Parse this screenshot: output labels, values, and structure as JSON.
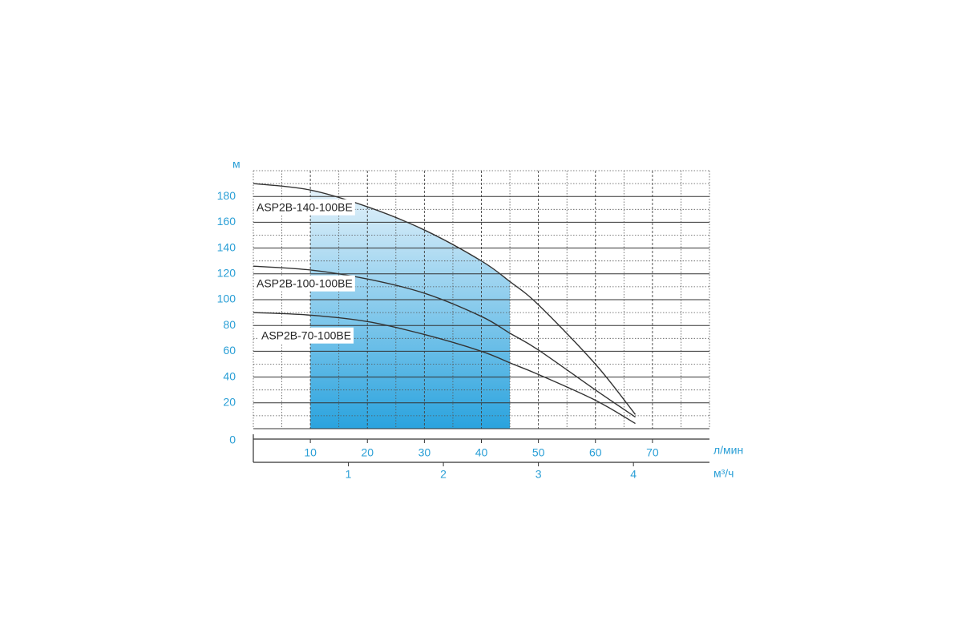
{
  "chart_data": {
    "type": "line",
    "y_unit": "м",
    "x_unit": "л/мин",
    "x2_unit": "м³/ч",
    "x": [
      0,
      10,
      20,
      30,
      40,
      45,
      50,
      60,
      67
    ],
    "series": [
      {
        "name": "ASP2B-140-100BE",
        "color": "#333333",
        "values": [
          190,
          185,
          172,
          154,
          130,
          114,
          96,
          50,
          11
        ]
      },
      {
        "name": "ASP2B-100-100BE",
        "color": "#333333",
        "values": [
          126,
          123,
          116,
          105,
          87,
          74,
          61,
          30,
          9
        ]
      },
      {
        "name": "ASP2B-70-100BE",
        "color": "#333333",
        "values": [
          90,
          88,
          83,
          73,
          60,
          51,
          42,
          22,
          4
        ]
      }
    ],
    "shaded_range": [
      10,
      45
    ],
    "xlim": [
      0,
      80
    ],
    "xticks": [
      10,
      20,
      30,
      40,
      50,
      60,
      70
    ],
    "x2lim": [
      0,
      4.8
    ],
    "x2ticks": [
      1,
      2,
      3,
      4
    ],
    "ylim": [
      0,
      200
    ],
    "yticks": [
      0,
      20,
      40,
      60,
      80,
      100,
      120,
      140,
      160,
      180
    ],
    "xticks_minor": [
      5,
      15,
      25,
      35,
      45,
      55,
      65,
      75
    ],
    "yticks_minor": [
      10,
      30,
      50,
      70,
      90,
      110,
      130,
      150,
      170,
      190,
      200
    ],
    "grid": true,
    "tick_color": "#2a9fd6"
  }
}
